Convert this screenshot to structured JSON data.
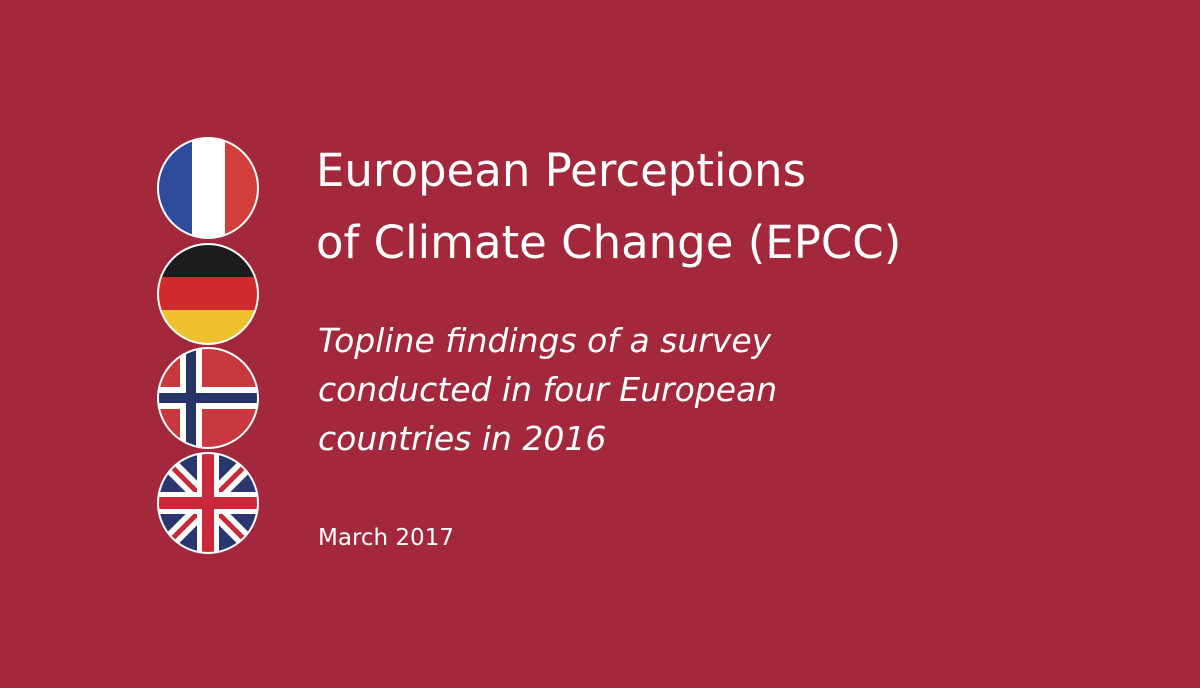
{
  "title": {
    "lines": [
      "European Perceptions",
      "of Climate Change (EPCC)"
    ]
  },
  "subtitle": {
    "lines": [
      "Topline findings of a survey",
      "conducted in four European",
      "countries in 2016"
    ]
  },
  "date": "March 2017"
}
